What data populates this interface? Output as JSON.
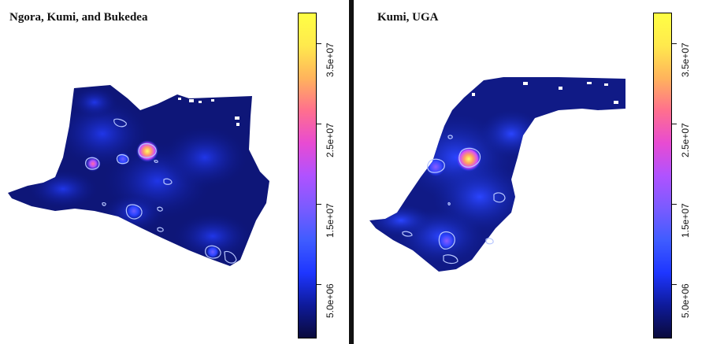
{
  "panels": [
    {
      "title": "Ngora, Kumi, and Bukedea",
      "legend": {
        "ticks": [
          "5.0e+06",
          "1.5e+07",
          "2.5e+07",
          "3.5e+07"
        ]
      }
    },
    {
      "title": "Kumi, UGA",
      "legend": {
        "ticks": [
          "5.0e+06",
          "1.5e+07",
          "2.5e+07",
          "3.5e+07"
        ]
      }
    }
  ],
  "colors": {
    "low": "#0a0a3c",
    "mid_low": "#1e36ff",
    "mid": "#b052ff",
    "mid_high": "#ff6f8e",
    "high": "#ffff44",
    "contour": "#b7c6ff"
  }
}
